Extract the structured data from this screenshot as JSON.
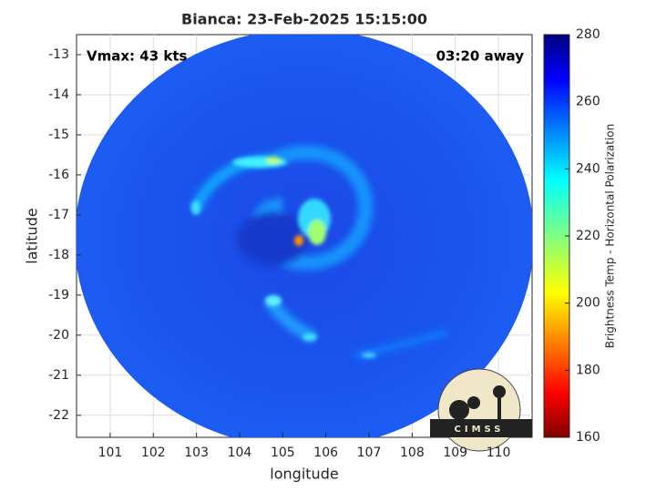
{
  "chart_data": {
    "type": "image",
    "title": "Bianca: 23-Feb-2025 15:15:00",
    "annotations": [
      "Vmax: 43 kts",
      "03:20 away"
    ],
    "xlabel": "longitude",
    "ylabel": "latitude",
    "xlim": [
      100.22,
      110.78
    ],
    "xticks": [
      101,
      102,
      103,
      104,
      105,
      106,
      107,
      108,
      109,
      110
    ],
    "ylim": [
      -22.55,
      -12.5
    ],
    "yticks": [
      -13,
      -14,
      -15,
      -16,
      -17,
      -18,
      -19,
      -20,
      -21,
      -22
    ],
    "grid": true,
    "colorbar": {
      "label": "Brightness Temp - Horizontal Polarization",
      "colormap": "jet",
      "lim": [
        160,
        280
      ],
      "ticks": [
        160,
        180,
        200,
        220,
        240,
        260,
        280
      ]
    },
    "logo": "CIMSS"
  }
}
